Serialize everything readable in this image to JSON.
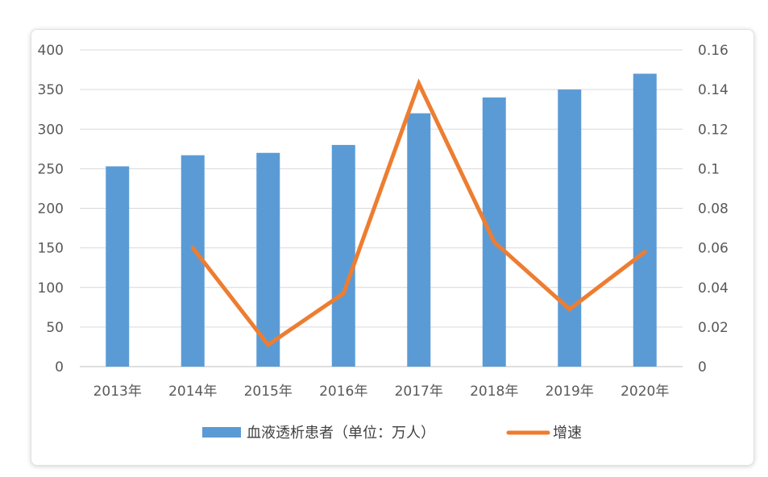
{
  "chart_data": {
    "type": "bar",
    "categories": [
      "2013年",
      "2014年",
      "2015年",
      "2016年",
      "2017年",
      "2018年",
      "2019年",
      "2020年"
    ],
    "series": [
      {
        "name": "血液透析患者（单位：万人）",
        "type": "bar",
        "axis": "left",
        "color": "#5b9bd5",
        "values": [
          253,
          267,
          270,
          280,
          320,
          340,
          350,
          370
        ]
      },
      {
        "name": "增速",
        "type": "line",
        "axis": "right",
        "color": "#ed7d31",
        "values": [
          null,
          0.06,
          0.011,
          0.037,
          0.143,
          0.063,
          0.029,
          0.058
        ]
      }
    ],
    "y_left": {
      "min": 0,
      "max": 400,
      "ticks": [
        "0",
        "50",
        "100",
        "150",
        "200",
        "250",
        "300",
        "350",
        "400"
      ]
    },
    "y_right": {
      "min": 0,
      "max": 0.16,
      "ticks": [
        "0",
        "0.02",
        "0.04",
        "0.06",
        "0.08",
        "0.1",
        "0.12",
        "0.14",
        "0.16"
      ]
    },
    "grid": true,
    "legend_position": "bottom"
  }
}
